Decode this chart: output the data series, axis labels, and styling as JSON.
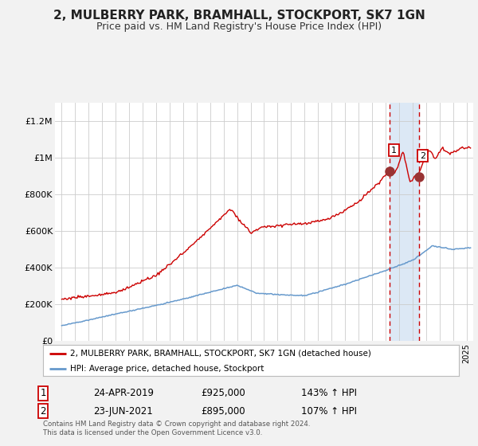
{
  "title": "2, MULBERRY PARK, BRAMHALL, STOCKPORT, SK7 1GN",
  "subtitle": "Price paid vs. HM Land Registry's House Price Index (HPI)",
  "legend_line1": "2, MULBERRY PARK, BRAMHALL, STOCKPORT, SK7 1GN (detached house)",
  "legend_line2": "HPI: Average price, detached house, Stockport",
  "footnote": "Contains HM Land Registry data © Crown copyright and database right 2024.\nThis data is licensed under the Open Government Licence v3.0.",
  "annotation1_date": "24-APR-2019",
  "annotation1_price": "£925,000",
  "annotation1_hpi": "143% ↑ HPI",
  "annotation2_date": "23-JUN-2021",
  "annotation2_price": "£895,000",
  "annotation2_hpi": "107% ↑ HPI",
  "red_line_color": "#cc0000",
  "blue_line_color": "#6699cc",
  "marker_color": "#993333",
  "vline1_x": 2019.32,
  "vline2_x": 2021.47,
  "marker1_y": 925000,
  "marker2_y": 895000,
  "ylim": [
    0,
    1300000
  ],
  "xlim": [
    1994.5,
    2025.5
  ],
  "yticks": [
    0,
    200000,
    400000,
    600000,
    800000,
    1000000,
    1200000
  ],
  "ytick_labels": [
    "£0",
    "£200K",
    "£400K",
    "£600K",
    "£800K",
    "£1M",
    "£1.2M"
  ],
  "background_color": "#f2f2f2",
  "plot_bg_color": "#ffffff",
  "shaded_region_color": "#dce8f5",
  "grid_color": "#cccccc",
  "title_fontsize": 11,
  "subtitle_fontsize": 9
}
